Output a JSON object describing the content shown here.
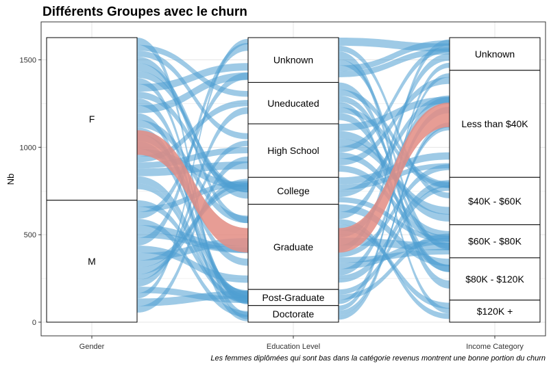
{
  "chart_data": {
    "type": "alluvial",
    "title": "Différents Groupes avec le churn",
    "ylabel": "Nb",
    "caption": "Les femmes diplômées qui sont bas dans la catégorie revenus montrent une bonne portion du churn",
    "ylim": [
      0,
      1627
    ],
    "yticks": [
      0,
      500,
      1000,
      1500
    ],
    "grid": true,
    "colors": {
      "flow": "#4f9ed1",
      "highlight": "#e38c83",
      "panel_border": "#333333",
      "grid": "#e5e5e5"
    },
    "axes": [
      {
        "label": "Gender",
        "strata": [
          {
            "name": "F",
            "value": 930
          },
          {
            "name": "M",
            "value": 697
          }
        ]
      },
      {
        "label": "Education Level",
        "strata": [
          {
            "name": "Unknown",
            "value": 256
          },
          {
            "name": "Uneducated",
            "value": 237
          },
          {
            "name": "High School",
            "value": 306
          },
          {
            "name": "College",
            "value": 154
          },
          {
            "name": "Graduate",
            "value": 487
          },
          {
            "name": "Post-Graduate",
            "value": 92
          },
          {
            "name": "Doctorate",
            "value": 95
          }
        ]
      },
      {
        "label": "Income Category",
        "strata": [
          {
            "name": "Unknown",
            "value": 187
          },
          {
            "name": "Less than $40K",
            "value": 612
          },
          {
            "name": "$40K - $60K",
            "value": 271
          },
          {
            "name": "$60K - $80K",
            "value": 189
          },
          {
            "name": "$80K - $120K",
            "value": 242
          },
          {
            "name": "$120K +",
            "value": 126
          }
        ]
      }
    ],
    "highlight": {
      "gender": "F",
      "education": "Graduate",
      "income": "Less than $40K",
      "count": 140
    }
  }
}
